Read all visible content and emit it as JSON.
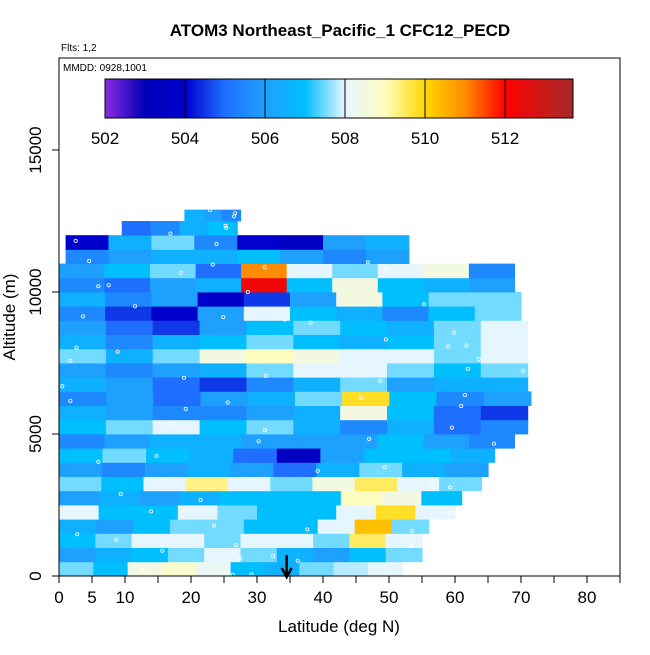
{
  "chart_data": {
    "type": "heatmap",
    "title": "ATOM3 Northeast_Pacific_1 CFC12_PECD",
    "flights_label": "Flts: 1,2",
    "dates_label": "MMDD: 0928,1001",
    "xlabel": "Latitude (deg N)",
    "ylabel": "Altitude (m)",
    "xlim": [
      0,
      85
    ],
    "ylim": [
      0,
      18000
    ],
    "x_ticks": [
      "0",
      "5",
      "10",
      "20",
      "30",
      "40",
      "50",
      "60",
      "70",
      "80"
    ],
    "x_tick_values": [
      0,
      5,
      10,
      20,
      30,
      40,
      50,
      60,
      70,
      80
    ],
    "x_minor_ticks": [
      15,
      25,
      35,
      45,
      55,
      65,
      75,
      85
    ],
    "y_ticks": [
      "0",
      "5000",
      "10000",
      "15000"
    ],
    "y_tick_values": [
      0,
      5000,
      10000,
      15000
    ],
    "colorbar": {
      "range": [
        502,
        513.7
      ],
      "ticks": [
        "502",
        "504",
        "506",
        "508",
        "510",
        "512"
      ],
      "tick_values": [
        502,
        504,
        506,
        508,
        510,
        512
      ],
      "stops": [
        {
          "v": 502.0,
          "c": "#8a2be2"
        },
        {
          "v": 503.0,
          "c": "#0000b8"
        },
        {
          "v": 504.0,
          "c": "#0000cd"
        },
        {
          "v": 505.0,
          "c": "#1e6fff"
        },
        {
          "v": 506.0,
          "c": "#1ea0ff"
        },
        {
          "v": 507.0,
          "c": "#00bfff"
        },
        {
          "v": 508.0,
          "c": "#e6f6ff"
        },
        {
          "v": 509.0,
          "c": "#fffcc0"
        },
        {
          "v": 510.0,
          "c": "#ffd700"
        },
        {
          "v": 511.0,
          "c": "#ff8c00"
        },
        {
          "v": 512.0,
          "c": "#ff0000"
        },
        {
          "v": 513.7,
          "c": "#a52a2a"
        }
      ]
    },
    "marker": {
      "type": "arrow",
      "latitude": 34.5
    },
    "profiles": [
      {
        "lat0": 0.0,
        "lat1": 52.0,
        "alt0": 0,
        "alt1": 500,
        "values": [
          507.5,
          507.0,
          508.5,
          508.8,
          508.2,
          507.0,
          506.5,
          507.5,
          507.8,
          508.0
        ]
      },
      {
        "lat0": 0.0,
        "lat1": 55.0,
        "alt0": 500,
        "alt1": 1000,
        "values": [
          506.0,
          506.5,
          507.0,
          507.5,
          508.0,
          507.5,
          506.5,
          506.0,
          507.0,
          507.5
        ]
      },
      {
        "lat0": 0.0,
        "lat1": 55.0,
        "alt0": 1000,
        "alt1": 1500,
        "values": [
          507.0,
          507.5,
          508.0,
          508.0,
          507.5,
          508.0,
          508.0,
          507.5,
          509.5,
          508.0
        ]
      },
      {
        "lat0": 0.0,
        "lat1": 56.0,
        "alt0": 1500,
        "alt1": 2000,
        "values": [
          506.5,
          506.0,
          507.0,
          507.5,
          507.5,
          507.0,
          507.0,
          508.0,
          510.3,
          507.5
        ]
      },
      {
        "lat0": 0.0,
        "lat1": 60.0,
        "alt0": 2000,
        "alt1": 2500,
        "values": [
          508.0,
          507.0,
          507.0,
          508.0,
          507.5,
          507.0,
          507.0,
          508.0,
          509.8,
          508.0
        ]
      },
      {
        "lat0": 0.0,
        "lat1": 61.0,
        "alt0": 2500,
        "alt1": 3000,
        "values": [
          506.0,
          506.5,
          506.0,
          506.5,
          507.0,
          507.0,
          507.0,
          509.0,
          508.5,
          507.0
        ]
      },
      {
        "lat0": 0.0,
        "lat1": 64.0,
        "alt0": 3000,
        "alt1": 3500,
        "values": [
          507.5,
          507.0,
          508.0,
          509.3,
          508.0,
          507.5,
          508.5,
          509.5,
          508.0,
          507.5
        ]
      },
      {
        "lat0": 0.0,
        "lat1": 65.0,
        "alt0": 3500,
        "alt1": 4000,
        "values": [
          506.0,
          505.5,
          506.0,
          506.5,
          506.0,
          505.0,
          506.5,
          507.5,
          506.5,
          506.0
        ]
      },
      {
        "lat0": 0.0,
        "lat1": 66.0,
        "alt0": 4000,
        "alt1": 4500,
        "values": [
          507.0,
          507.5,
          507.0,
          506.5,
          505.0,
          503.5,
          506.0,
          507.0,
          507.0,
          506.5
        ]
      },
      {
        "lat0": 0.0,
        "lat1": 69.0,
        "alt0": 4500,
        "alt1": 5000,
        "values": [
          505.5,
          506.0,
          506.5,
          506.5,
          506.0,
          506.0,
          506.0,
          507.0,
          506.0,
          505.5
        ]
      },
      {
        "lat0": 0.0,
        "lat1": 71.0,
        "alt0": 5000,
        "alt1": 5500,
        "values": [
          507.0,
          507.5,
          508.0,
          507.0,
          507.5,
          506.5,
          505.5,
          506.5,
          505.0,
          505.5
        ]
      },
      {
        "lat0": 0.0,
        "lat1": 71.0,
        "alt0": 5500,
        "alt1": 6000,
        "values": [
          506.5,
          506.0,
          505.5,
          505.5,
          506.0,
          506.5,
          508.5,
          507.0,
          505.0,
          504.5
        ]
      },
      {
        "lat0": 0.0,
        "lat1": 71.5,
        "alt0": 6000,
        "alt1": 6500,
        "values": [
          505.5,
          506.0,
          505.0,
          506.0,
          506.5,
          507.5,
          509.8,
          507.0,
          505.5,
          506.0
        ]
      },
      {
        "lat0": 0.0,
        "lat1": 71.0,
        "alt0": 6500,
        "alt1": 7000,
        "values": [
          506.5,
          506.0,
          505.0,
          504.5,
          505.5,
          506.5,
          507.5,
          506.0,
          506.5,
          506.5
        ]
      },
      {
        "lat0": 0.0,
        "lat1": 71.0,
        "alt0": 7000,
        "alt1": 7500,
        "values": [
          506.0,
          505.5,
          506.0,
          506.5,
          507.5,
          508.0,
          508.0,
          507.5,
          507.0,
          507.5
        ]
      },
      {
        "lat0": 0.0,
        "lat1": 71.0,
        "alt0": 7500,
        "alt1": 8000,
        "values": [
          507.5,
          506.5,
          507.5,
          508.5,
          509.0,
          508.5,
          508.0,
          508.0,
          507.5,
          508.0
        ]
      },
      {
        "lat0": 0.0,
        "lat1": 71.0,
        "alt0": 8000,
        "alt1": 8500,
        "values": [
          506.5,
          505.5,
          506.5,
          507.0,
          507.5,
          507.0,
          506.5,
          507.0,
          507.5,
          508.0
        ]
      },
      {
        "lat0": 0.0,
        "lat1": 71.0,
        "alt0": 8500,
        "alt1": 9000,
        "values": [
          506.0,
          505.0,
          504.5,
          506.0,
          507.0,
          507.5,
          507.0,
          506.5,
          507.5,
          508.0
        ]
      },
      {
        "lat0": 0.0,
        "lat1": 70.0,
        "alt0": 9000,
        "alt1": 9500,
        "values": [
          505.5,
          504.5,
          504.0,
          506.0,
          508.0,
          507.0,
          506.5,
          505.5,
          507.0,
          507.5
        ]
      },
      {
        "lat0": 0.0,
        "lat1": 70.0,
        "alt0": 9500,
        "alt1": 10000,
        "values": [
          506.5,
          505.5,
          506.0,
          503.8,
          504.5,
          506.0,
          508.5,
          507.0,
          507.5,
          507.5
        ]
      },
      {
        "lat0": 0.0,
        "lat1": 69.0,
        "alt0": 10000,
        "alt1": 10500,
        "values": [
          505.5,
          505.0,
          506.0,
          506.5,
          512.3,
          507.0,
          508.5,
          507.0,
          506.5,
          506.0
        ]
      },
      {
        "lat0": 0.0,
        "lat1": 69.0,
        "alt0": 10500,
        "alt1": 11000,
        "values": [
          506.0,
          507.0,
          507.5,
          505.0,
          511.0,
          508.0,
          507.5,
          508.0,
          508.5,
          505.5
        ]
      },
      {
        "lat0": 1.0,
        "lat1": 53.0,
        "alt0": 11000,
        "alt1": 11500,
        "values": [
          505.5,
          506.0,
          506.5,
          506.5,
          507.0,
          506.0,
          505.5,
          506.0
        ]
      },
      {
        "lat0": 1.0,
        "lat1": 53.0,
        "alt0": 11500,
        "alt1": 12000,
        "values": [
          504.0,
          506.5,
          507.5,
          505.5,
          504.0,
          503.5,
          506.0,
          506.5
        ]
      },
      {
        "lat0": 9.5,
        "lat1": 27.0,
        "alt0": 12000,
        "alt1": 12500,
        "values": [
          505.0,
          505.5,
          506.5,
          507.0
        ]
      },
      {
        "lat0": 19.0,
        "lat1": 27.5,
        "alt0": 12500,
        "alt1": 12900,
        "values": [
          506.5,
          506.0,
          505.5
        ]
      }
    ]
  }
}
